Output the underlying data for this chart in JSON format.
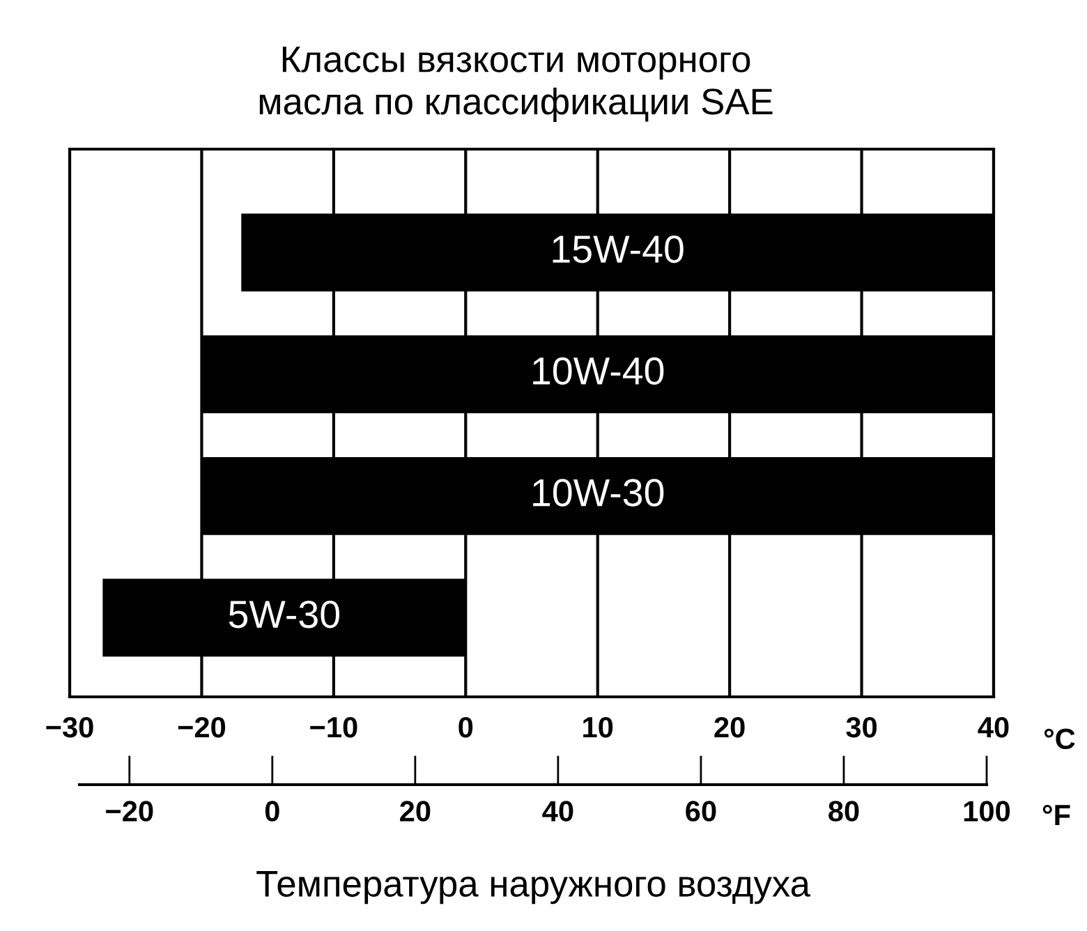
{
  "chart_data": {
    "type": "bar",
    "orientation": "horizontal",
    "title": "Классы вязкости моторного\nмасла по классификации SAE",
    "xlabel": "Температура наружного воздуха",
    "categories": [
      "15W-40",
      "10W-40",
      "10W-30",
      "5W-30"
    ],
    "base": [
      -17,
      -20,
      -20,
      -27.5
    ],
    "values": [
      57,
      60,
      60,
      27.5
    ],
    "color": "#000000",
    "xlim": [
      -30,
      40
    ],
    "xticks": [
      {
        "value": -30,
        "label": "−30"
      },
      {
        "value": -20,
        "label": "−20"
      },
      {
        "value": -10,
        "label": "−10"
      },
      0,
      10,
      20,
      30,
      40
    ],
    "x2lim": [
      -27,
      100
    ],
    "x2ticks": [
      {
        "value": -20,
        "label": "−20"
      },
      0,
      20,
      40,
      60,
      80,
      100
    ],
    "annotations": [
      "°C",
      "°F"
    ],
    "grid": "x",
    "tick_labels": "x"
  }
}
